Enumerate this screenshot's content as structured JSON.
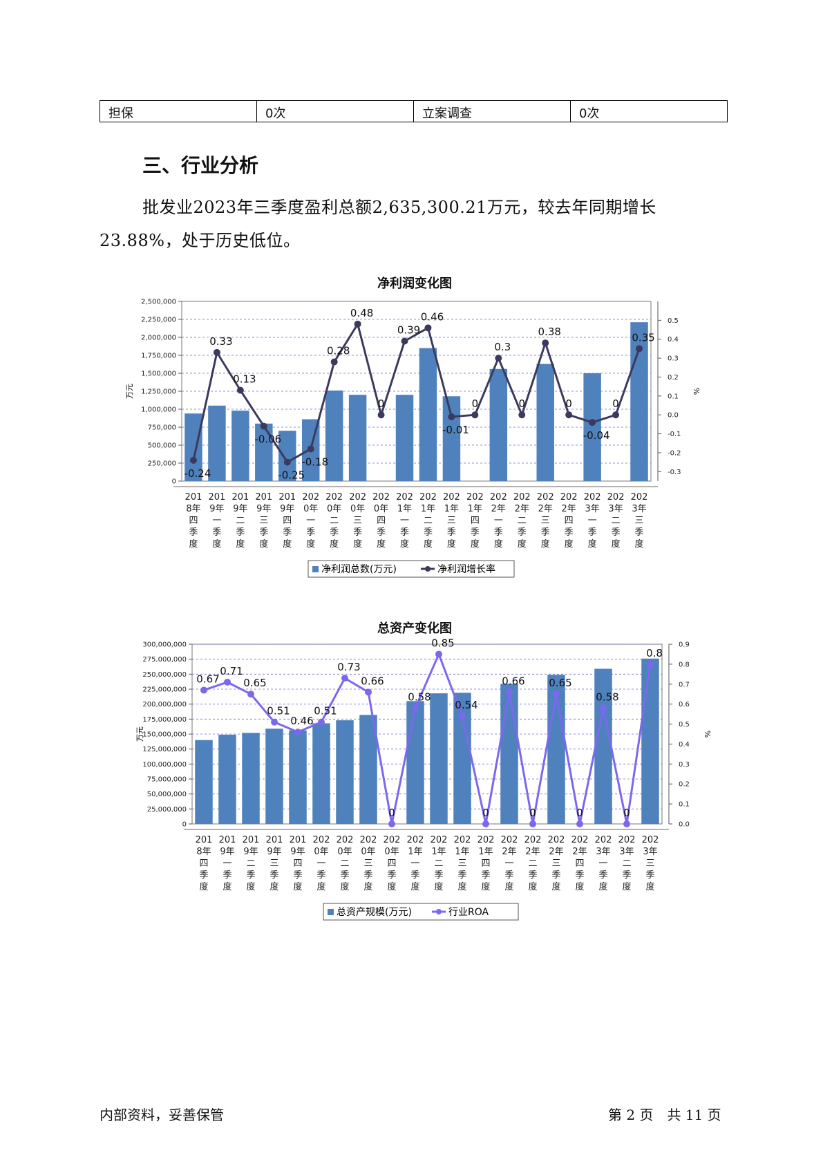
{
  "table_row": {
    "cells": [
      "担保",
      "0次",
      "立案调查",
      "0次"
    ]
  },
  "section_heading": "三、行业分析",
  "paragraph": "批发业2023年三季度盈利总额2,635,300.21万元，较去年同期增长23.88%，处于历史低位。",
  "chart_data": [
    {
      "type": "bar",
      "title": "净利润变化图",
      "ylabel": "万元",
      "y2label": "%",
      "ylim": [
        0,
        2500000
      ],
      "y2lim": [
        -0.35,
        0.6
      ],
      "y_ticks": [
        "0",
        "250,000",
        "500,000",
        "750,000",
        "1,000,000",
        "1,250,000",
        "1,500,000",
        "1,750,000",
        "2,000,000",
        "2,250,000",
        "2,500,000"
      ],
      "y2_ticks": [
        "-0.3",
        "-0.2",
        "-0.1",
        "0.0",
        "0.1",
        "0.2",
        "0.3",
        "0.4",
        "0.5"
      ],
      "categories": [
        "2018年四季度",
        "2019年一季度",
        "2019年二季度",
        "2019年三季度",
        "2019年四季度",
        "2020年一季度",
        "2020年二季度",
        "2020年三季度",
        "2020年四季度",
        "2021年一季度",
        "2021年二季度",
        "2021年三季度",
        "2021年四季度",
        "2022年一季度",
        "2022年二季度",
        "2022年三季度",
        "2022年四季度",
        "2023年一季度",
        "2023年二季度",
        "2023年三季度"
      ],
      "series": [
        {
          "name": "净利润总数(万元)",
          "kind": "bar",
          "color": "#4f81bd",
          "values": [
            940000,
            1050000,
            980000,
            800000,
            700000,
            860000,
            1260000,
            1200000,
            0,
            1200000,
            1850000,
            1180000,
            0,
            1560000,
            0,
            1630000,
            0,
            1500000,
            0,
            2210000
          ]
        },
        {
          "name": "净利润增长率",
          "kind": "line",
          "color": "#3b3a5e",
          "values": [
            -0.24,
            0.33,
            0.13,
            -0.06,
            -0.25,
            -0.18,
            0.28,
            0.48,
            0,
            0.39,
            0.46,
            -0.01,
            0,
            0.3,
            0,
            0.38,
            0,
            -0.04,
            0,
            0.35
          ],
          "labels": [
            "-0.24",
            "0.33",
            "0.13",
            "-0.06",
            "-0.25",
            "-0.18",
            "0.28",
            "0.48",
            "0",
            "0.39",
            "0.46",
            "-0.01",
            "0",
            "0.3",
            "0",
            "0.38",
            "0",
            "-0.04",
            "0",
            "0.35"
          ]
        }
      ],
      "legend": "bottom"
    },
    {
      "type": "bar",
      "title": "总资产变化图",
      "ylabel": "万元",
      "y2label": "%",
      "ylim": [
        0,
        300000000
      ],
      "y2lim": [
        0,
        0.9
      ],
      "y_ticks": [
        "0",
        "25,000,000",
        "50,000,000",
        "75,000,000",
        "100,000,000",
        "125,000,000",
        "150,000,000",
        "175,000,000",
        "200,000,000",
        "225,000,000",
        "250,000,000",
        "275,000,000",
        "300,000,000"
      ],
      "y2_ticks": [
        "0.0",
        "0.1",
        "0.2",
        "0.3",
        "0.4",
        "0.5",
        "0.6",
        "0.7",
        "0.8",
        "0.9"
      ],
      "categories": [
        "2018年四季度",
        "2019年一季度",
        "2019年二季度",
        "2019年三季度",
        "2019年四季度",
        "2020年一季度",
        "2020年二季度",
        "2020年三季度",
        "2020年四季度",
        "2021年一季度",
        "2021年二季度",
        "2021年三季度",
        "2021年四季度",
        "2022年一季度",
        "2022年二季度",
        "2022年三季度",
        "2022年四季度",
        "2023年一季度",
        "2023年二季度",
        "2023年三季度"
      ],
      "series": [
        {
          "name": "总资产规模(万元)",
          "kind": "bar",
          "color": "#4f81bd",
          "values": [
            140000000,
            149000000,
            152000000,
            159000000,
            156000000,
            168000000,
            173000000,
            182000000,
            0,
            205000000,
            218000000,
            219000000,
            0,
            234000000,
            0,
            249000000,
            0,
            259000000,
            0,
            276000000
          ]
        },
        {
          "name": "行业ROA",
          "kind": "line",
          "color": "#7b68ee",
          "values": [
            0.67,
            0.71,
            0.65,
            0.51,
            0.46,
            0.51,
            0.73,
            0.66,
            0,
            0.58,
            0.85,
            0.54,
            0,
            0.66,
            0,
            0.65,
            0,
            0.58,
            0,
            0.8
          ],
          "labels": [
            "0.67",
            "0.71",
            "0.65",
            "0.51",
            "0.46",
            "0.51",
            "0.73",
            "0.66",
            "0",
            "0.58",
            "0.85",
            "0.54",
            "0",
            "0.66",
            "0",
            "0.65",
            "0",
            "0.58",
            "0",
            "0.8"
          ]
        }
      ],
      "legend": "bottom"
    }
  ],
  "footer": {
    "left": "内部资料，妥善保管",
    "right": "第 2 页　共 11 页"
  }
}
